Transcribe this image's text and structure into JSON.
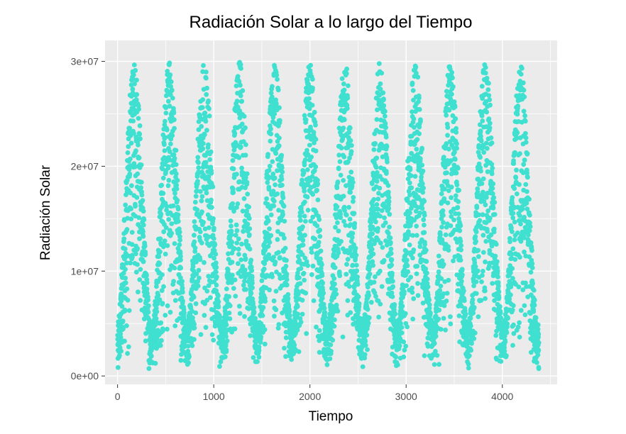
{
  "chart_data": {
    "type": "scatter",
    "title": "Radiación Solar a lo largo del Tiempo",
    "xlabel": "Tiempo",
    "ylabel": "Radiación Solar",
    "xlim": [
      -130,
      4570
    ],
    "ylim": [
      -800000,
      32000000
    ],
    "x_ticks": [
      0,
      1000,
      2000,
      3000,
      4000
    ],
    "x_tick_labels": [
      "0",
      "1000",
      "2000",
      "3000",
      "4000"
    ],
    "y_ticks": [
      0,
      10000000,
      20000000,
      30000000
    ],
    "y_tick_labels": [
      "0e+00",
      "1e+07",
      "2e+07",
      "3e+07"
    ],
    "grid": true,
    "legend": "none",
    "point_color": "#40E0D0",
    "panel_color": "#EBEBEB",
    "grid_color": "#FFFFFF",
    "series": [
      {
        "x_range": [
          1,
          4380
        ],
        "description_of_pattern": "annual seasonal cycle of daily solar radiation",
        "n_points": 4380,
        "period": 365.25,
        "peak_day_offset": 172,
        "max_value": 30000000,
        "min_value": 500000
      }
    ]
  }
}
